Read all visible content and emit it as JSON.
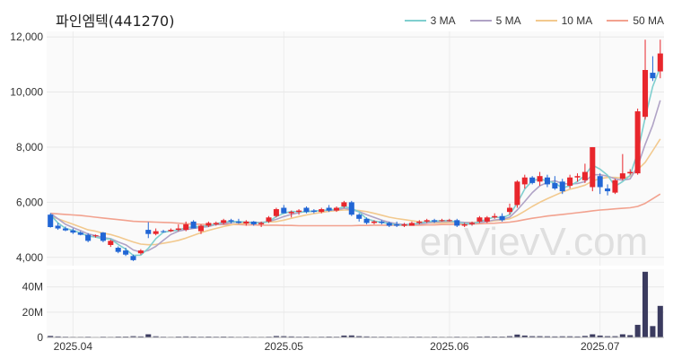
{
  "chart_data": [
    {
      "type": "candlestick",
      "title": "파인엠텍(441270)",
      "watermark": "enVievV.com",
      "y_ticks": [
        "12,000",
        "10,000",
        "8,000",
        "6,000",
        "4,000"
      ],
      "ylim": [
        3700,
        12200
      ],
      "x_ticks": [
        "2025.04",
        "2025.05",
        "2025.06",
        "2025.07"
      ],
      "legend": [
        {
          "name": "3 MA",
          "color": "#80cfcf"
        },
        {
          "name": "5 MA",
          "color": "#b0a3c6"
        },
        {
          "name": "10 MA",
          "color": "#f2c98e"
        },
        {
          "name": "50 MA",
          "color": "#f2a28f"
        }
      ],
      "up_color": "#e8262c",
      "down_color": "#2166d5",
      "ohlc": [
        [
          5550,
          5600,
          5080,
          5100
        ],
        [
          5150,
          5250,
          5000,
          5050
        ],
        [
          5050,
          5120,
          4950,
          4980
        ],
        [
          4980,
          5050,
          4850,
          4900
        ],
        [
          4900,
          4950,
          4800,
          4820
        ],
        [
          4820,
          4880,
          4550,
          4600
        ],
        [
          4780,
          4830,
          4720,
          4800
        ],
        [
          4900,
          4920,
          4550,
          4600
        ],
        [
          4450,
          4650,
          4380,
          4600
        ],
        [
          4350,
          4400,
          4150,
          4200
        ],
        [
          4250,
          4350,
          4050,
          4100
        ],
        [
          4050,
          4100,
          3870,
          3900
        ],
        [
          4150,
          4300,
          4100,
          4250
        ],
        [
          5000,
          5280,
          4700,
          4850
        ],
        [
          4850,
          5050,
          4800,
          4950
        ],
        [
          4950,
          5000,
          4900,
          4930
        ],
        [
          4950,
          5050,
          4920,
          5000
        ],
        [
          5000,
          5200,
          4950,
          5050
        ],
        [
          5000,
          5300,
          4950,
          5200
        ],
        [
          5300,
          5350,
          5050,
          5050
        ],
        [
          4950,
          5200,
          4850,
          5150
        ],
        [
          5150,
          5300,
          5100,
          5250
        ],
        [
          5200,
          5300,
          5150,
          5250
        ],
        [
          5250,
          5400,
          5200,
          5350
        ],
        [
          5350,
          5400,
          5230,
          5300
        ],
        [
          5300,
          5400,
          5220,
          5250
        ],
        [
          5230,
          5350,
          5150,
          5300
        ],
        [
          5300,
          5320,
          5150,
          5200
        ],
        [
          5200,
          5300,
          5100,
          5250
        ],
        [
          5300,
          5500,
          5250,
          5450
        ],
        [
          5500,
          5800,
          5450,
          5750
        ],
        [
          5800,
          5900,
          5600,
          5600
        ],
        [
          5600,
          5700,
          5450,
          5650
        ],
        [
          5650,
          5750,
          5550,
          5700
        ],
        [
          5800,
          5850,
          5600,
          5650
        ],
        [
          5700,
          5750,
          5600,
          5650
        ],
        [
          5650,
          5800,
          5600,
          5750
        ],
        [
          5800,
          5900,
          5650,
          5700
        ],
        [
          5700,
          5850,
          5650,
          5800
        ],
        [
          5850,
          6050,
          5800,
          6000
        ],
        [
          6000,
          6050,
          5500,
          5550
        ],
        [
          5550,
          5600,
          5300,
          5400
        ],
        [
          5400,
          5450,
          5200,
          5250
        ],
        [
          5250,
          5350,
          5200,
          5300
        ],
        [
          5300,
          5350,
          5200,
          5250
        ],
        [
          5250,
          5300,
          5100,
          5150
        ],
        [
          5200,
          5300,
          5100,
          5150
        ],
        [
          5150,
          5250,
          5100,
          5200
        ],
        [
          5150,
          5300,
          5150,
          5250
        ],
        [
          5250,
          5350,
          5200,
          5300
        ],
        [
          5300,
          5400,
          5250,
          5350
        ],
        [
          5350,
          5400,
          5250,
          5300
        ],
        [
          5350,
          5400,
          5300,
          5350
        ],
        [
          5350,
          5400,
          5300,
          5350
        ],
        [
          5350,
          5400,
          5100,
          5150
        ],
        [
          5150,
          5250,
          5100,
          5200
        ],
        [
          5200,
          5300,
          5150,
          5250
        ],
        [
          5300,
          5500,
          5250,
          5450
        ],
        [
          5300,
          5500,
          5250,
          5450
        ],
        [
          5450,
          5600,
          5400,
          5500
        ],
        [
          5500,
          5600,
          5300,
          5350
        ],
        [
          5650,
          5950,
          5550,
          5800
        ],
        [
          5900,
          6800,
          5800,
          6750
        ],
        [
          6650,
          7000,
          6500,
          6900
        ],
        [
          6900,
          6950,
          6650,
          6700
        ],
        [
          6750,
          7100,
          6600,
          6950
        ],
        [
          6900,
          7000,
          6550,
          6650
        ],
        [
          6700,
          6950,
          6450,
          6500
        ],
        [
          6750,
          6850,
          6300,
          6400
        ],
        [
          6600,
          7000,
          6500,
          6900
        ],
        [
          6900,
          7050,
          6750,
          6950
        ],
        [
          6800,
          7400,
          6700,
          7100
        ],
        [
          6550,
          8000,
          6400,
          8000
        ],
        [
          6950,
          7050,
          6300,
          6550
        ],
        [
          6500,
          6650,
          6250,
          6400
        ],
        [
          6350,
          6850,
          6300,
          6800
        ],
        [
          6850,
          7750,
          6800,
          7050
        ],
        [
          7050,
          7200,
          7000,
          7100
        ],
        [
          7050,
          9400,
          7000,
          9300
        ],
        [
          9100,
          11900,
          9000,
          10800
        ],
        [
          10700,
          11300,
          10400,
          10500
        ],
        [
          10750,
          11900,
          10500,
          11400
        ]
      ],
      "ma3": [
        5550,
        5250,
        5050,
        4980,
        4890,
        4770,
        4740,
        4670,
        4670,
        4470,
        4300,
        4070,
        4080,
        4330,
        4680,
        4910,
        4960,
        4990,
        5080,
        5100,
        5130,
        5150,
        5220,
        5280,
        5300,
        5300,
        5280,
        5250,
        5250,
        5300,
        5480,
        5600,
        5670,
        5650,
        5650,
        5680,
        5700,
        5720,
        5750,
        5840,
        5780,
        5650,
        5400,
        5320,
        5270,
        5230,
        5180,
        5170,
        5200,
        5250,
        5300,
        5320,
        5330,
        5340,
        5280,
        5230,
        5200,
        5300,
        5380,
        5470,
        5430,
        5550,
        5970,
        6480,
        6780,
        6850,
        6770,
        6700,
        6520,
        6600,
        6750,
        6980,
        7350,
        7200,
        6980,
        6580,
        6750,
        6980,
        7800,
        9070,
        10200,
        10900
      ],
      "ma5": [
        5600,
        5400,
        5200,
        5080,
        4970,
        4850,
        4790,
        4720,
        4680,
        4560,
        4460,
        4270,
        4190,
        4250,
        4400,
        4620,
        4830,
        4950,
        5010,
        5050,
        5090,
        5120,
        5190,
        5220,
        5260,
        5290,
        5280,
        5270,
        5270,
        5300,
        5380,
        5480,
        5560,
        5620,
        5670,
        5680,
        5700,
        5710,
        5720,
        5780,
        5730,
        5660,
        5550,
        5450,
        5350,
        5270,
        5220,
        5190,
        5200,
        5210,
        5250,
        5280,
        5300,
        5310,
        5290,
        5270,
        5250,
        5270,
        5300,
        5360,
        5380,
        5460,
        5720,
        6030,
        6350,
        6600,
        6720,
        6780,
        6680,
        6660,
        6680,
        6750,
        7000,
        7000,
        6950,
        6850,
        6800,
        6850,
        7300,
        8100,
        8800,
        9700
      ],
      "ma10": [
        5500,
        5400,
        5300,
        5200,
        5100,
        5000,
        4950,
        4880,
        4830,
        4750,
        4650,
        4560,
        4480,
        4460,
        4470,
        4510,
        4560,
        4620,
        4700,
        4800,
        4900,
        4980,
        5050,
        5120,
        5180,
        5220,
        5240,
        5260,
        5270,
        5280,
        5300,
        5350,
        5420,
        5480,
        5540,
        5590,
        5630,
        5670,
        5700,
        5720,
        5720,
        5700,
        5660,
        5600,
        5530,
        5460,
        5410,
        5370,
        5330,
        5290,
        5260,
        5250,
        5250,
        5260,
        5270,
        5270,
        5270,
        5280,
        5300,
        5330,
        5360,
        5400,
        5520,
        5680,
        5850,
        6000,
        6130,
        6250,
        6370,
        6470,
        6540,
        6620,
        6770,
        6860,
        6900,
        6900,
        6880,
        6940,
        7180,
        7450,
        7870,
        8300
      ],
      "ma50": [
        5600,
        5580,
        5560,
        5540,
        5520,
        5490,
        5460,
        5430,
        5400,
        5370,
        5340,
        5310,
        5300,
        5290,
        5280,
        5270,
        5260,
        5240,
        5220,
        5210,
        5200,
        5190,
        5190,
        5190,
        5190,
        5190,
        5180,
        5180,
        5170,
        5170,
        5170,
        5160,
        5160,
        5150,
        5150,
        5150,
        5150,
        5150,
        5150,
        5150,
        5150,
        5160,
        5160,
        5170,
        5170,
        5170,
        5170,
        5170,
        5170,
        5170,
        5180,
        5180,
        5190,
        5190,
        5200,
        5200,
        5210,
        5220,
        5230,
        5240,
        5260,
        5280,
        5320,
        5370,
        5420,
        5460,
        5500,
        5530,
        5560,
        5590,
        5620,
        5650,
        5690,
        5720,
        5740,
        5760,
        5780,
        5800,
        5850,
        5960,
        6130,
        6300
      ],
      "volume": [
        1.2,
        0.8,
        0.6,
        0.5,
        0.5,
        0.6,
        0.4,
        0.6,
        0.5,
        0.7,
        0.7,
        1.0,
        0.8,
        2.5,
        0.9,
        0.6,
        0.5,
        0.7,
        0.8,
        0.7,
        0.6,
        0.7,
        0.6,
        0.7,
        0.6,
        0.5,
        0.6,
        0.5,
        0.5,
        0.6,
        1.1,
        1.0,
        0.8,
        0.6,
        0.7,
        0.5,
        0.6,
        0.7,
        0.6,
        1.5,
        1.6,
        1.0,
        0.8,
        0.6,
        0.6,
        0.6,
        0.5,
        0.5,
        0.6,
        0.6,
        0.5,
        0.6,
        0.5,
        0.5,
        0.6,
        0.5,
        0.5,
        0.7,
        0.8,
        0.7,
        0.7,
        1.0,
        2.3,
        1.5,
        1.0,
        1.0,
        0.9,
        0.8,
        0.9,
        0.9,
        0.8,
        1.2,
        2.5,
        1.5,
        1.0,
        1.0,
        2.5,
        1.8,
        10.0,
        52.0,
        9.0,
        25.0
      ],
      "volume_ticks": [
        "40M",
        "20M",
        "0"
      ],
      "volume_tick_values": [
        40,
        20,
        0
      ],
      "volume_max": 54,
      "volume_color": "#3b3b5f"
    }
  ]
}
